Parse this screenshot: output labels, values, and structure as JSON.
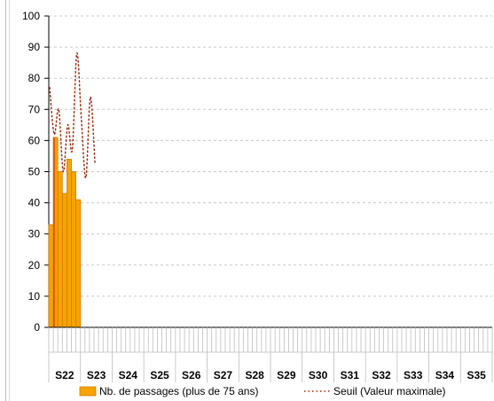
{
  "chart_data": {
    "type": "bar",
    "y_axis": {
      "min": 0,
      "max": 100,
      "step": 10,
      "ticks": [
        "0",
        "10",
        "20",
        "30",
        "40",
        "50",
        "60",
        "70",
        "80",
        "90",
        "100"
      ]
    },
    "weeks": [
      "S22",
      "S23",
      "S24",
      "S25",
      "S26",
      "S27",
      "S28",
      "S29",
      "S30",
      "S31",
      "S32",
      "S33",
      "S34",
      "S35"
    ],
    "days_per_week": 7,
    "series": [
      {
        "name": "Nb. de passages (plus de 75 ans)",
        "type": "bar",
        "color": "#F5A400",
        "edge_color": "#D97A00",
        "highlight_color": "#E8421A",
        "values": [
          33,
          61,
          50,
          43,
          54,
          50,
          41
        ]
      },
      {
        "name": "Seuil (Valeur maximale)",
        "type": "line",
        "style": "dotted",
        "color": "#A0300E",
        "values": [
          77,
          62,
          70,
          50,
          65,
          57,
          88,
          67,
          48,
          74,
          53
        ]
      }
    ],
    "grid": {
      "horizontal": true,
      "style": "dashed"
    },
    "legend": {
      "position": "bottom"
    }
  }
}
